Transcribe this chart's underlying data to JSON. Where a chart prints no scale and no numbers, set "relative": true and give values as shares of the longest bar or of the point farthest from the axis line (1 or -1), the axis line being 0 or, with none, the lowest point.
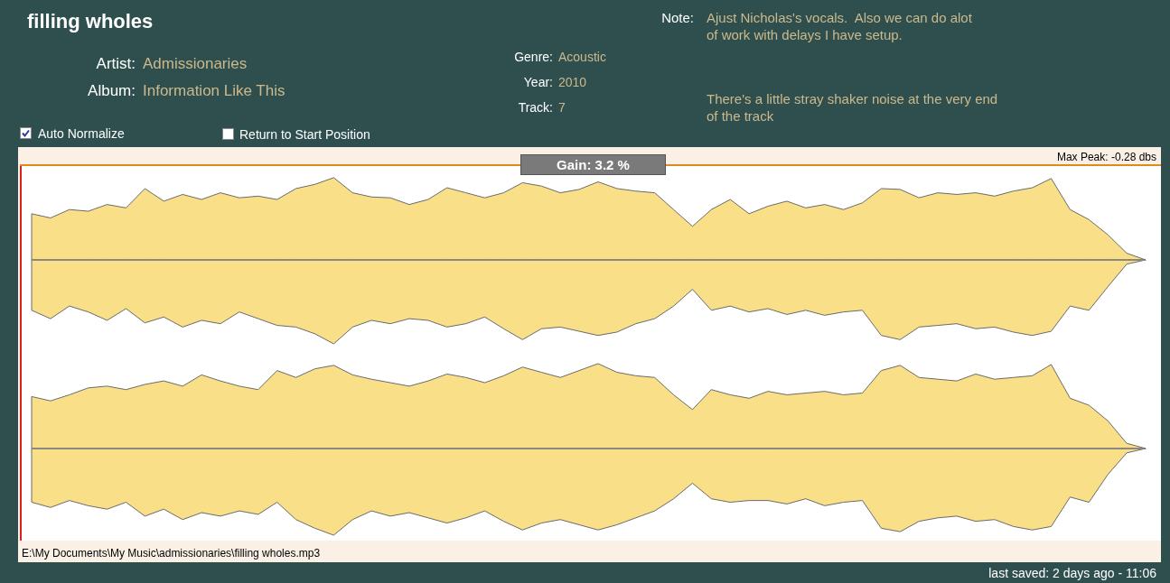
{
  "chart_data": [
    {
      "type": "area",
      "title": "filling wholes",
      "relative": true,
      "categories": [
        null,
        null,
        null,
        null,
        null,
        null,
        null,
        null,
        null,
        null,
        null,
        null,
        null,
        null,
        null,
        null,
        null,
        null,
        null,
        null,
        null,
        null,
        null,
        null,
        null,
        null,
        null,
        null,
        null,
        null,
        null,
        null,
        null,
        null,
        null,
        null,
        null,
        null,
        null,
        null,
        null,
        null,
        null,
        null,
        null,
        null,
        null,
        null,
        null,
        null,
        null,
        null,
        null,
        null,
        null,
        null,
        null,
        null,
        null,
        null
      ],
      "series": [
        {
          "color": "#f9df87",
          "values": [
            0.55,
            0.5,
            0.6,
            0.58,
            0.66,
            0.62,
            0.85,
            0.7,
            0.78,
            0.72,
            0.8,
            0.74,
            0.76,
            0.72,
            0.85,
            0.9,
            0.98,
            0.8,
            0.75,
            0.74,
            0.66,
            0.72,
            0.86,
            0.8,
            0.74,
            0.8,
            0.92,
            0.88,
            0.8,
            0.84,
            0.93,
            0.85,
            0.82,
            0.8,
            0.6,
            0.4,
            0.6,
            0.72,
            0.55,
            0.64,
            0.7,
            0.62,
            0.66,
            0.6,
            0.68,
            0.85,
            0.84,
            0.74,
            0.8,
            0.78,
            0.8,
            0.76,
            0.82,
            0.86,
            0.97,
            0.6,
            0.48,
            0.3,
            0.08,
            0
          ]
        },
        {
          "color": "#f9df87",
          "values": [
            -0.6,
            -0.7,
            -0.55,
            -0.62,
            -0.72,
            -0.58,
            -0.75,
            -0.68,
            -0.8,
            -0.72,
            -0.76,
            -0.62,
            -0.7,
            -0.78,
            -0.8,
            -0.88,
            -1,
            -0.8,
            -0.72,
            -0.76,
            -0.7,
            -0.72,
            -0.8,
            -0.76,
            -0.68,
            -0.82,
            -0.95,
            -0.82,
            -0.8,
            -0.85,
            -0.9,
            -0.86,
            -0.76,
            -0.7,
            -0.55,
            -0.35,
            -0.6,
            -0.55,
            -0.62,
            -0.58,
            -0.65,
            -0.6,
            -0.66,
            -0.62,
            -0.6,
            -0.9,
            -0.95,
            -0.8,
            -0.78,
            -0.76,
            -0.82,
            -0.8,
            -0.86,
            -0.9,
            -0.85,
            -0.55,
            -0.6,
            -0.32,
            -0.05,
            0
          ]
        }
      ],
      "annotations": [
        "Artist:",
        "Admissionaries",
        "Album:",
        "Information Like This",
        "Genre:",
        "Acoustic",
        "Year:",
        "2010",
        "Track:",
        "7",
        "Note:",
        "Ajust Nicholas's vocals.  Also we can do alot of work with delays I have setup.",
        "There's a little stray shaker noise at the very end of the track",
        "Auto Normalize",
        "Return to Start Position",
        "Gain: 3.2 %",
        "Max Peak: -0.28 dbs"
      ]
    },
    {
      "type": "area",
      "relative": true,
      "categories": [
        null,
        null,
        null,
        null,
        null,
        null,
        null,
        null,
        null,
        null,
        null,
        null,
        null,
        null,
        null,
        null,
        null,
        null,
        null,
        null,
        null,
        null,
        null,
        null,
        null,
        null,
        null,
        null,
        null,
        null,
        null,
        null,
        null,
        null,
        null,
        null,
        null,
        null,
        null,
        null,
        null,
        null,
        null,
        null,
        null,
        null,
        null,
        null,
        null,
        null,
        null,
        null,
        null,
        null,
        null,
        null,
        null,
        null,
        null,
        null
      ],
      "series": [
        {
          "color": "#f9df87",
          "values": [
            0.6,
            0.55,
            0.62,
            0.7,
            0.72,
            0.68,
            0.74,
            0.78,
            0.72,
            0.85,
            0.78,
            0.72,
            0.68,
            0.9,
            0.82,
            0.92,
            0.96,
            0.85,
            0.8,
            0.76,
            0.72,
            0.78,
            0.86,
            0.82,
            0.76,
            0.84,
            0.94,
            0.88,
            0.82,
            0.9,
            0.98,
            0.88,
            0.84,
            0.82,
            0.62,
            0.45,
            0.68,
            0.62,
            0.58,
            0.66,
            0.62,
            0.64,
            0.66,
            0.62,
            0.64,
            0.9,
            0.96,
            0.82,
            0.8,
            0.78,
            0.86,
            0.8,
            0.82,
            0.84,
            0.97,
            0.58,
            0.5,
            0.32,
            0.06,
            0
          ]
        },
        {
          "color": "#f9df87",
          "values": [
            -0.62,
            -0.68,
            -0.6,
            -0.66,
            -0.7,
            -0.62,
            -0.78,
            -0.7,
            -0.82,
            -0.74,
            -0.78,
            -0.72,
            -0.76,
            -0.62,
            -0.82,
            -0.92,
            -1,
            -0.82,
            -0.72,
            -0.78,
            -0.74,
            -0.8,
            -0.86,
            -0.8,
            -0.72,
            -0.84,
            -0.94,
            -0.86,
            -0.82,
            -0.88,
            -0.94,
            -0.88,
            -0.8,
            -0.72,
            -0.58,
            -0.4,
            -0.58,
            -0.62,
            -0.6,
            -0.6,
            -0.64,
            -0.58,
            -0.66,
            -0.62,
            -0.6,
            -0.92,
            -0.96,
            -0.84,
            -0.8,
            -0.78,
            -0.84,
            -0.82,
            -0.9,
            -0.94,
            -0.9,
            -0.56,
            -0.62,
            -0.3,
            -0.05,
            0
          ]
        }
      ],
      "annotations": [
        "E:\\My Documents\\My Music\\admissionaries\\filling wholes.mp3",
        "last saved: 2 days ago - 11:06"
      ]
    }
  ]
}
